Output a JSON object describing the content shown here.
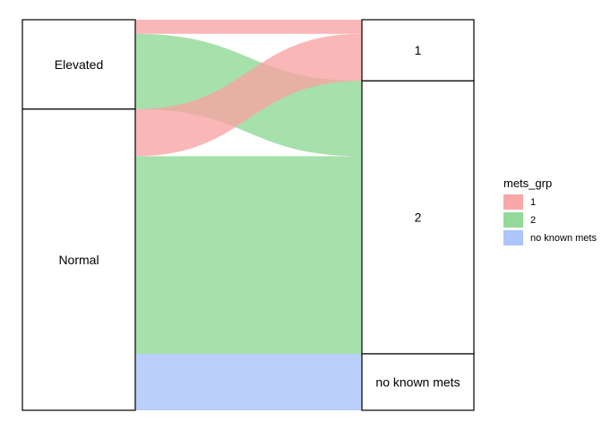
{
  "chart_data": {
    "type": "alluvial",
    "axes": [
      {
        "strata": [
          "Elevated",
          "Normal"
        ]
      },
      {
        "strata": [
          "1",
          "2",
          "no known mets"
        ]
      }
    ],
    "flows": [
      {
        "from": "Elevated",
        "to": "1",
        "group": "1",
        "value": 3
      },
      {
        "from": "Elevated",
        "to": "2",
        "group": "2",
        "value": 16
      },
      {
        "from": "Normal",
        "to": "1",
        "group": "1",
        "value": 10
      },
      {
        "from": "Normal",
        "to": "2",
        "group": "2",
        "value": 42
      },
      {
        "from": "Normal",
        "to": "no known mets",
        "group": "no known mets",
        "value": 12
      }
    ],
    "legend": {
      "title": "mets_grp",
      "position": "right",
      "entries": [
        {
          "label": "1",
          "color": "#F8A3A3"
        },
        {
          "label": "2",
          "color": "#8DD793"
        },
        {
          "label": "no known mets",
          "color": "#A8C2FA"
        }
      ]
    }
  }
}
